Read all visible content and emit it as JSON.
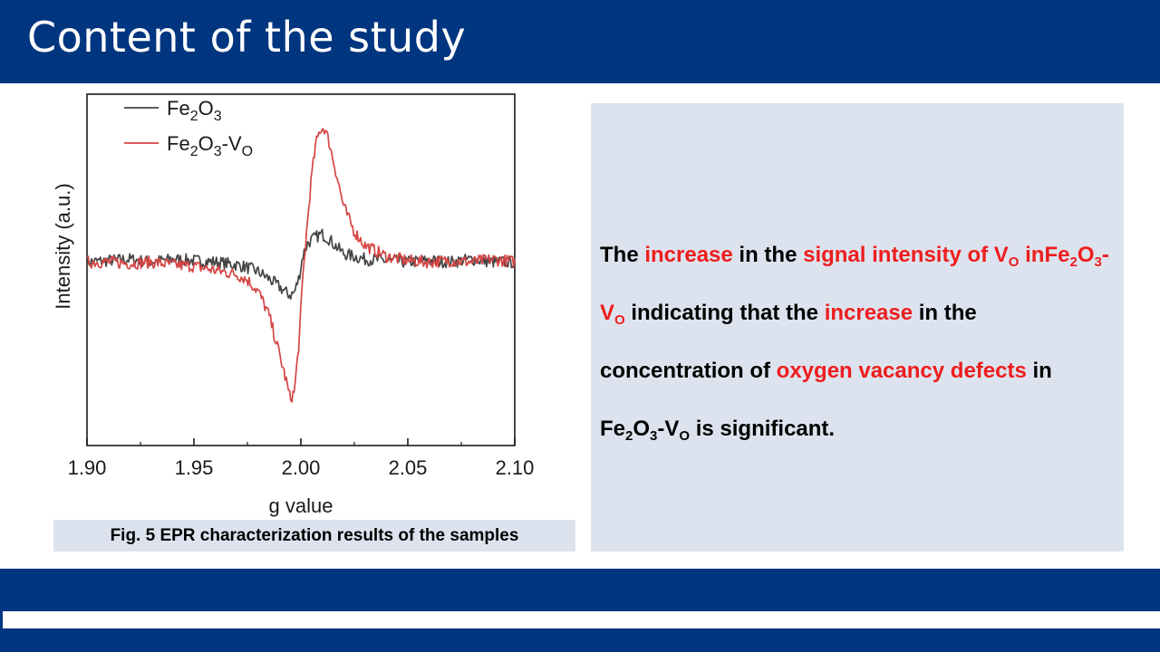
{
  "slide": {
    "title": "Content of the study",
    "caption": "Fig. 5 EPR characterization results of the samples"
  },
  "text_panel": {
    "segments": [
      {
        "text": "The ",
        "red": false
      },
      {
        "text": "increase",
        "red": true
      },
      {
        "text": " in the ",
        "red": false
      },
      {
        "text": "signal intensity of V",
        "red": true
      },
      {
        "text": "O",
        "red": true,
        "sub": true
      },
      {
        "text": " in",
        "red": true
      },
      {
        "text": "Fe",
        "red": true
      },
      {
        "text": "2",
        "red": true,
        "sub": true
      },
      {
        "text": "O",
        "red": true
      },
      {
        "text": "3",
        "red": true,
        "sub": true
      },
      {
        "text": "-V",
        "red": true
      },
      {
        "text": "O",
        "red": true,
        "sub": true
      },
      {
        "text": "  indicating that the ",
        "red": false
      },
      {
        "text": "increase",
        "red": true
      },
      {
        "text": " in the concentration of ",
        "red": false
      },
      {
        "text": "oxygen vacancy defects",
        "red": true
      },
      {
        "text": " in Fe",
        "red": false
      },
      {
        "text": "2",
        "red": false,
        "sub": true
      },
      {
        "text": "O",
        "red": false
      },
      {
        "text": "3",
        "red": false,
        "sub": true
      },
      {
        "text": "-V",
        "red": false
      },
      {
        "text": "O",
        "red": false,
        "sub": true
      },
      {
        "text": " is significant.",
        "red": false
      }
    ]
  },
  "colors": {
    "brand_blue": "#003580",
    "panel_bg": "#dde3ee",
    "highlight_red": "#ee1d1d",
    "fe2o3": "#444444",
    "fe2o3_vo": "#d64545"
  },
  "chart_data": {
    "type": "line",
    "title": "",
    "xlabel": "g value",
    "ylabel": "Intensity (a.u.)",
    "xlim": [
      1.9,
      2.1
    ],
    "ylim": [
      -1.0,
      1.05
    ],
    "xticks": [
      "1.90",
      "1.95",
      "2.00",
      "2.05",
      "2.10"
    ],
    "xtick_values": [
      1.9,
      1.95,
      2.0,
      2.05,
      2.1
    ],
    "legend_position": "top-left",
    "grid": false,
    "series": [
      {
        "name": "Fe2O3",
        "legend_parts": [
          {
            "t": "Fe"
          },
          {
            "t": "2",
            "sub": true
          },
          {
            "t": "O"
          },
          {
            "t": "3",
            "sub": true
          }
        ],
        "color": "#444444",
        "x": [
          1.9,
          1.91,
          1.92,
          1.93,
          1.94,
          1.95,
          1.96,
          1.97,
          1.975,
          1.98,
          1.985,
          1.99,
          1.993,
          1.995,
          1.997,
          1.999,
          2.001,
          2.003,
          2.005,
          2.008,
          2.01,
          2.013,
          2.016,
          2.02,
          2.025,
          2.03,
          2.04,
          2.05,
          2.06,
          2.07,
          2.08,
          2.09,
          2.1
        ],
        "y": [
          0.0,
          0.01,
          0.02,
          0.0,
          0.02,
          0.01,
          0.0,
          -0.02,
          -0.04,
          -0.07,
          -0.12,
          -0.18,
          -0.22,
          -0.24,
          -0.22,
          -0.12,
          0.05,
          0.13,
          0.16,
          0.19,
          0.2,
          0.17,
          0.12,
          0.06,
          0.04,
          0.02,
          0.01,
          0.0,
          0.01,
          0.0,
          0.02,
          0.0,
          0.0
        ]
      },
      {
        "name": "Fe2O3-VO",
        "legend_parts": [
          {
            "t": "Fe"
          },
          {
            "t": "2",
            "sub": true
          },
          {
            "t": "O"
          },
          {
            "t": "3",
            "sub": true
          },
          {
            "t": "-V"
          },
          {
            "t": "O",
            "sub": true
          }
        ],
        "color": "#d64545",
        "x": [
          1.9,
          1.91,
          1.92,
          1.93,
          1.94,
          1.95,
          1.96,
          1.97,
          1.975,
          1.98,
          1.985,
          1.988,
          1.99,
          1.993,
          1.995,
          1.997,
          1.999,
          2.001,
          2.003,
          2.005,
          2.007,
          2.009,
          2.011,
          2.013,
          2.016,
          2.02,
          2.025,
          2.03,
          2.04,
          2.05,
          2.06,
          2.07,
          2.08,
          2.09,
          2.1
        ],
        "y": [
          0.0,
          0.0,
          -0.01,
          0.0,
          -0.02,
          -0.03,
          -0.06,
          -0.09,
          -0.13,
          -0.21,
          -0.38,
          -0.55,
          -0.67,
          -0.85,
          -0.99,
          -0.94,
          -0.6,
          -0.1,
          0.28,
          0.62,
          0.85,
          0.96,
          0.97,
          0.88,
          0.68,
          0.4,
          0.22,
          0.12,
          0.04,
          0.01,
          0.0,
          0.01,
          0.0,
          0.02,
          0.0
        ]
      }
    ]
  }
}
